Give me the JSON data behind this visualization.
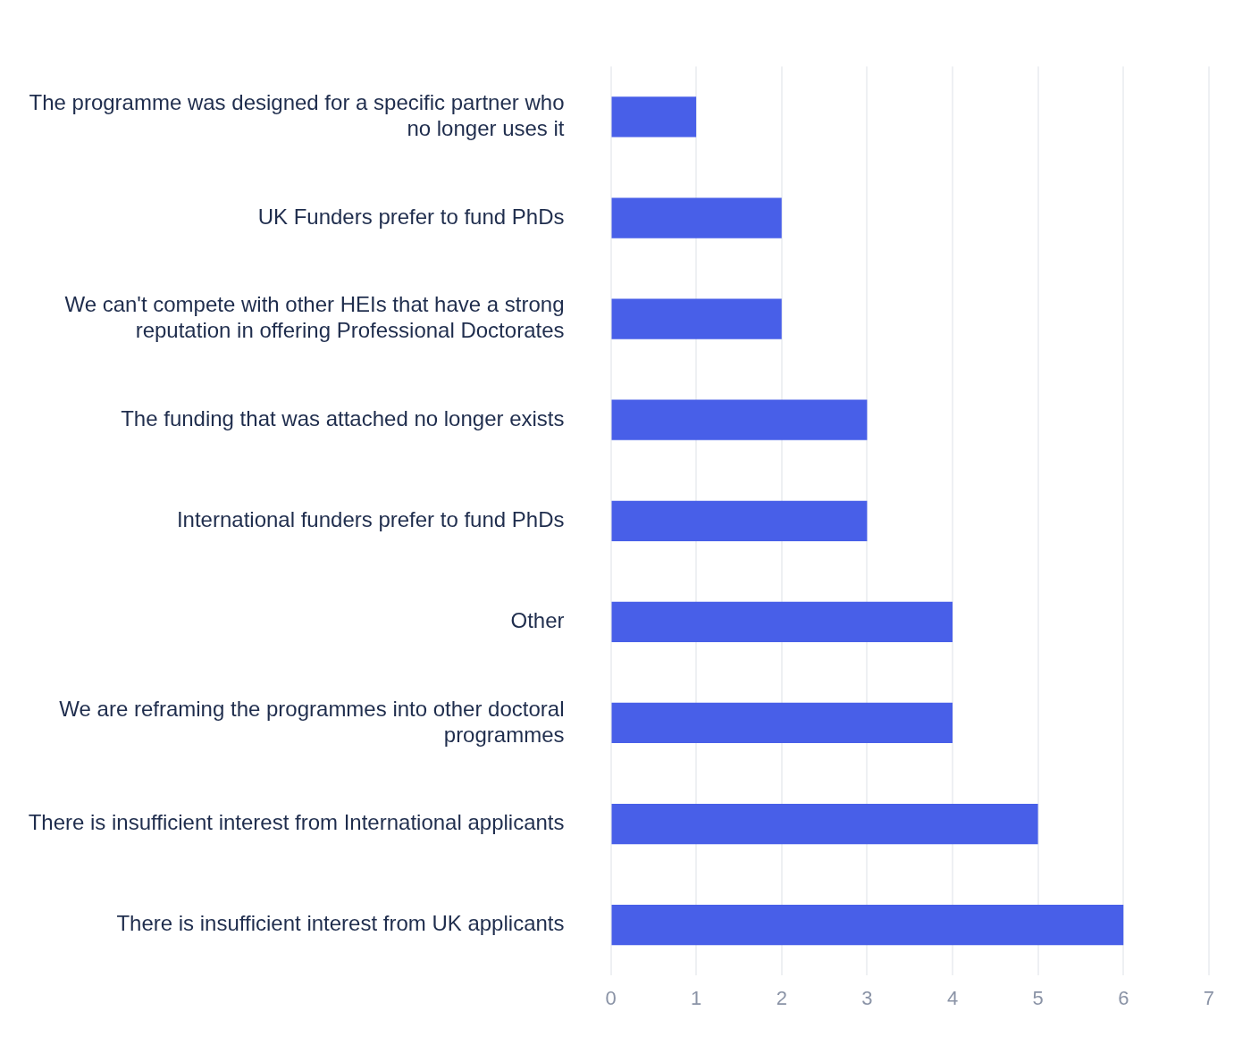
{
  "chart_data": {
    "type": "bar",
    "orientation": "horizontal",
    "categories": [
      "The programme was designed for a specific partner who no longer uses it",
      "UK Funders prefer to fund PhDs",
      "We can't compete with other HEIs that have a strong reputation in offering Professional Doctorates",
      "The funding that was attached no longer exists",
      "International funders prefer to fund PhDs",
      "Other",
      "We are reframing the programmes into other doctoral programmes",
      "There is insufficient interest from International applicants",
      "There is insufficient interest from UK applicants"
    ],
    "values": [
      1,
      2,
      2,
      3,
      3,
      4,
      4,
      5,
      6
    ],
    "color": "#485fe8",
    "xlim": [
      0,
      7
    ],
    "xticks": [
      0,
      1,
      2,
      3,
      4,
      5,
      6,
      7
    ],
    "grid": "x",
    "legend": false
  }
}
